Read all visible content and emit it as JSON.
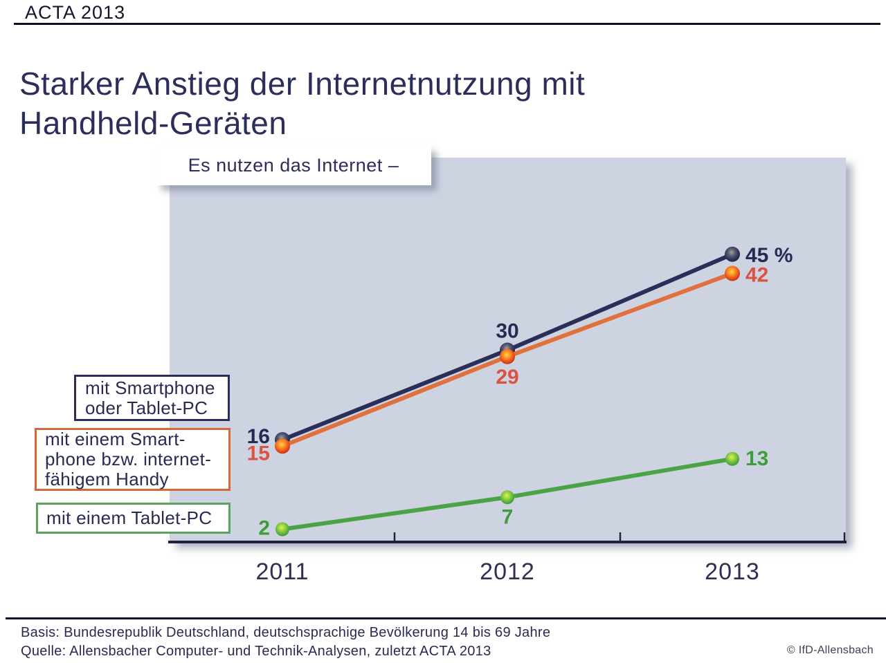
{
  "header": {
    "label": "ACTA 2013",
    "title": "Starker Anstieg der Internetnutzung mit Handheld-Geräten"
  },
  "annotation": {
    "text": "Es nutzen das Internet –"
  },
  "legend": [
    {
      "label": "mit Smartphone\noder Tablet-PC",
      "color": "#2b2e5a"
    },
    {
      "label": "mit einem Smart-\nphone bzw. internet-\nfähigem Handy",
      "color": "#d2693c"
    },
    {
      "label": "mit einem Tablet-PC",
      "color": "#5aa45e"
    }
  ],
  "footer": {
    "basis": "Basis: Bundesrepublik Deutschland, deutschsprachige Bevölkerung 14 bis 69 Jahre",
    "quelle": "Quelle: Allensbacher Computer- und Technik-Analysen, zuletzt ACTA 2013",
    "copyright": "© IfD-Allensbach"
  },
  "chart_data": {
    "type": "line",
    "title": "Starker Anstieg der Internetnutzung mit Handheld-Geräten",
    "annotation": "Es nutzen das Internet –",
    "categories": [
      "2011",
      "2012",
      "2013"
    ],
    "unit": "%",
    "ylim": [
      0,
      60
    ],
    "grid": false,
    "legend_position": "left",
    "plot_bg": "#cdd3e0",
    "axis_color": "#1e2142",
    "series": [
      {
        "name": "mit Smartphone oder Tablet-PC",
        "color": "#2b2e56",
        "label_color": "#262a52",
        "values": [
          16,
          30,
          45
        ],
        "labels": [
          "16",
          "30",
          "45 %"
        ]
      },
      {
        "name": "mit einem Smartphone bzw. internetfähigem Handy",
        "color": "#e0713d",
        "label_color": "#dc5242",
        "values": [
          15,
          29,
          42
        ],
        "labels": [
          "15",
          "29",
          "42"
        ]
      },
      {
        "name": "mit einem Tablet-PC",
        "color": "#4ba346",
        "label_color": "#3f9c3c",
        "values": [
          2,
          7,
          13
        ],
        "labels": [
          "2",
          "7",
          "13"
        ]
      }
    ]
  }
}
